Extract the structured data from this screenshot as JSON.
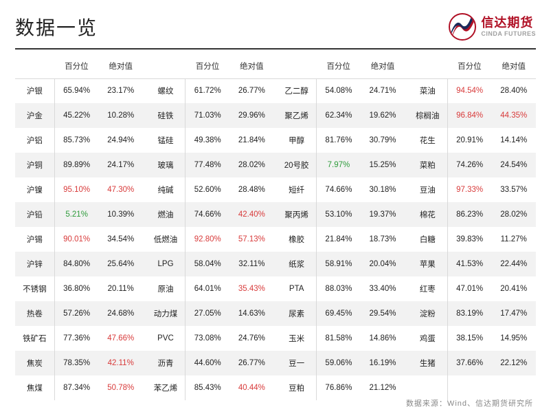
{
  "title": "数据一览",
  "logo": {
    "cn": "信达期货",
    "en": "CINDA FUTURES"
  },
  "headers": {
    "name": "",
    "pct": "百分位",
    "abs": "绝对值"
  },
  "footer": "数据来源：Wind、信达期货研究所",
  "colors": {
    "red": "#d83a3a",
    "green": "#2e9b3b",
    "normal": "#222222"
  },
  "blocks": [
    [
      {
        "n": "沪银",
        "p": "65.94%",
        "a": "23.17%",
        "pc": "n",
        "ac": "n"
      },
      {
        "n": "沪金",
        "p": "45.22%",
        "a": "10.28%",
        "pc": "n",
        "ac": "n"
      },
      {
        "n": "沪铝",
        "p": "85.73%",
        "a": "24.94%",
        "pc": "n",
        "ac": "n"
      },
      {
        "n": "沪铜",
        "p": "89.89%",
        "a": "24.17%",
        "pc": "n",
        "ac": "n"
      },
      {
        "n": "沪镍",
        "p": "95.10%",
        "a": "47.30%",
        "pc": "r",
        "ac": "r"
      },
      {
        "n": "沪铅",
        "p": "5.21%",
        "a": "10.39%",
        "pc": "g",
        "ac": "n"
      },
      {
        "n": "沪锡",
        "p": "90.01%",
        "a": "34.54%",
        "pc": "r",
        "ac": "n"
      },
      {
        "n": "沪锌",
        "p": "84.80%",
        "a": "25.64%",
        "pc": "n",
        "ac": "n"
      },
      {
        "n": "不锈钢",
        "p": "36.80%",
        "a": "20.11%",
        "pc": "n",
        "ac": "n"
      },
      {
        "n": "热卷",
        "p": "57.26%",
        "a": "24.68%",
        "pc": "n",
        "ac": "n"
      },
      {
        "n": "铁矿石",
        "p": "77.36%",
        "a": "47.66%",
        "pc": "n",
        "ac": "r"
      },
      {
        "n": "焦炭",
        "p": "78.35%",
        "a": "42.11%",
        "pc": "n",
        "ac": "r"
      },
      {
        "n": "焦煤",
        "p": "87.34%",
        "a": "50.78%",
        "pc": "n",
        "ac": "r"
      }
    ],
    [
      {
        "n": "螺纹",
        "p": "61.72%",
        "a": "26.77%",
        "pc": "n",
        "ac": "n"
      },
      {
        "n": "硅铁",
        "p": "71.03%",
        "a": "29.96%",
        "pc": "n",
        "ac": "n"
      },
      {
        "n": "锰硅",
        "p": "49.38%",
        "a": "21.84%",
        "pc": "n",
        "ac": "n"
      },
      {
        "n": "玻璃",
        "p": "77.48%",
        "a": "28.02%",
        "pc": "n",
        "ac": "n"
      },
      {
        "n": "纯碱",
        "p": "52.60%",
        "a": "28.48%",
        "pc": "n",
        "ac": "n"
      },
      {
        "n": "燃油",
        "p": "74.66%",
        "a": "42.40%",
        "pc": "n",
        "ac": "r"
      },
      {
        "n": "低燃油",
        "p": "92.80%",
        "a": "57.13%",
        "pc": "r",
        "ac": "r"
      },
      {
        "n": "LPG",
        "p": "58.04%",
        "a": "32.11%",
        "pc": "n",
        "ac": "n"
      },
      {
        "n": "原油",
        "p": "64.01%",
        "a": "35.43%",
        "pc": "n",
        "ac": "r"
      },
      {
        "n": "动力煤",
        "p": "27.05%",
        "a": "14.63%",
        "pc": "n",
        "ac": "n"
      },
      {
        "n": "PVC",
        "p": "73.08%",
        "a": "24.76%",
        "pc": "n",
        "ac": "n"
      },
      {
        "n": "沥青",
        "p": "44.60%",
        "a": "26.77%",
        "pc": "n",
        "ac": "n"
      },
      {
        "n": "苯乙烯",
        "p": "85.43%",
        "a": "40.44%",
        "pc": "n",
        "ac": "r"
      }
    ],
    [
      {
        "n": "乙二醇",
        "p": "54.08%",
        "a": "24.71%",
        "pc": "n",
        "ac": "n"
      },
      {
        "n": "聚乙烯",
        "p": "62.34%",
        "a": "19.62%",
        "pc": "n",
        "ac": "n"
      },
      {
        "n": "甲醇",
        "p": "81.76%",
        "a": "30.79%",
        "pc": "n",
        "ac": "n"
      },
      {
        "n": "20号胶",
        "p": "7.97%",
        "a": "15.25%",
        "pc": "g",
        "ac": "n"
      },
      {
        "n": "短纤",
        "p": "74.66%",
        "a": "30.18%",
        "pc": "n",
        "ac": "n"
      },
      {
        "n": "聚丙烯",
        "p": "53.10%",
        "a": "19.37%",
        "pc": "n",
        "ac": "n"
      },
      {
        "n": "橡胶",
        "p": "21.84%",
        "a": "18.73%",
        "pc": "n",
        "ac": "n"
      },
      {
        "n": "纸浆",
        "p": "58.91%",
        "a": "20.04%",
        "pc": "n",
        "ac": "n"
      },
      {
        "n": "PTA",
        "p": "88.03%",
        "a": "33.40%",
        "pc": "n",
        "ac": "n"
      },
      {
        "n": "尿素",
        "p": "69.45%",
        "a": "29.54%",
        "pc": "n",
        "ac": "n"
      },
      {
        "n": "玉米",
        "p": "81.58%",
        "a": "14.86%",
        "pc": "n",
        "ac": "n"
      },
      {
        "n": "豆一",
        "p": "59.06%",
        "a": "16.19%",
        "pc": "n",
        "ac": "n"
      },
      {
        "n": "豆粕",
        "p": "76.86%",
        "a": "21.12%",
        "pc": "n",
        "ac": "n"
      }
    ],
    [
      {
        "n": "菜油",
        "p": "94.54%",
        "a": "28.40%",
        "pc": "r",
        "ac": "n"
      },
      {
        "n": "棕榈油",
        "p": "96.84%",
        "a": "44.35%",
        "pc": "r",
        "ac": "r"
      },
      {
        "n": "花生",
        "p": "20.91%",
        "a": "14.14%",
        "pc": "n",
        "ac": "n"
      },
      {
        "n": "菜粕",
        "p": "74.26%",
        "a": "24.54%",
        "pc": "n",
        "ac": "n"
      },
      {
        "n": "豆油",
        "p": "97.33%",
        "a": "33.57%",
        "pc": "r",
        "ac": "n"
      },
      {
        "n": "棉花",
        "p": "86.23%",
        "a": "28.02%",
        "pc": "n",
        "ac": "n"
      },
      {
        "n": "白糖",
        "p": "39.83%",
        "a": "11.27%",
        "pc": "n",
        "ac": "n"
      },
      {
        "n": "苹果",
        "p": "41.53%",
        "a": "22.44%",
        "pc": "n",
        "ac": "n"
      },
      {
        "n": "红枣",
        "p": "47.01%",
        "a": "20.41%",
        "pc": "n",
        "ac": "n"
      },
      {
        "n": "淀粉",
        "p": "83.19%",
        "a": "17.47%",
        "pc": "n",
        "ac": "n"
      },
      {
        "n": "鸡蛋",
        "p": "38.15%",
        "a": "14.95%",
        "pc": "n",
        "ac": "n"
      },
      {
        "n": "生猪",
        "p": "37.66%",
        "a": "22.12%",
        "pc": "n",
        "ac": "n"
      },
      {
        "n": "",
        "p": "",
        "a": "",
        "pc": "n",
        "ac": "n"
      }
    ]
  ]
}
